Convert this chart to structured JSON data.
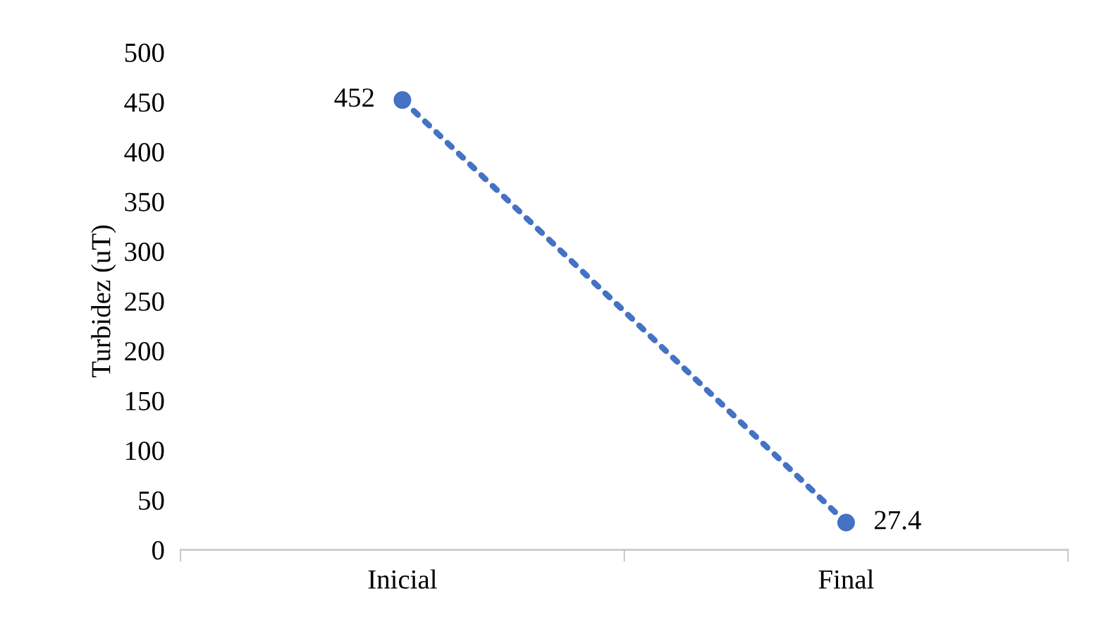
{
  "chart_data": {
    "type": "line",
    "ylabel": "Turbidez (uT)",
    "categories": [
      "Inicial",
      "Final"
    ],
    "series": [
      {
        "color": "#4472c4",
        "values": [
          452,
          27.4
        ]
      }
    ],
    "ylim": [
      0,
      500
    ],
    "yticks": [
      0,
      50,
      100,
      150,
      200,
      250,
      300,
      350,
      400,
      450,
      500
    ],
    "marker": "circle",
    "line_style": "dotted",
    "data_labels": true,
    "grid": false,
    "legend": false
  }
}
